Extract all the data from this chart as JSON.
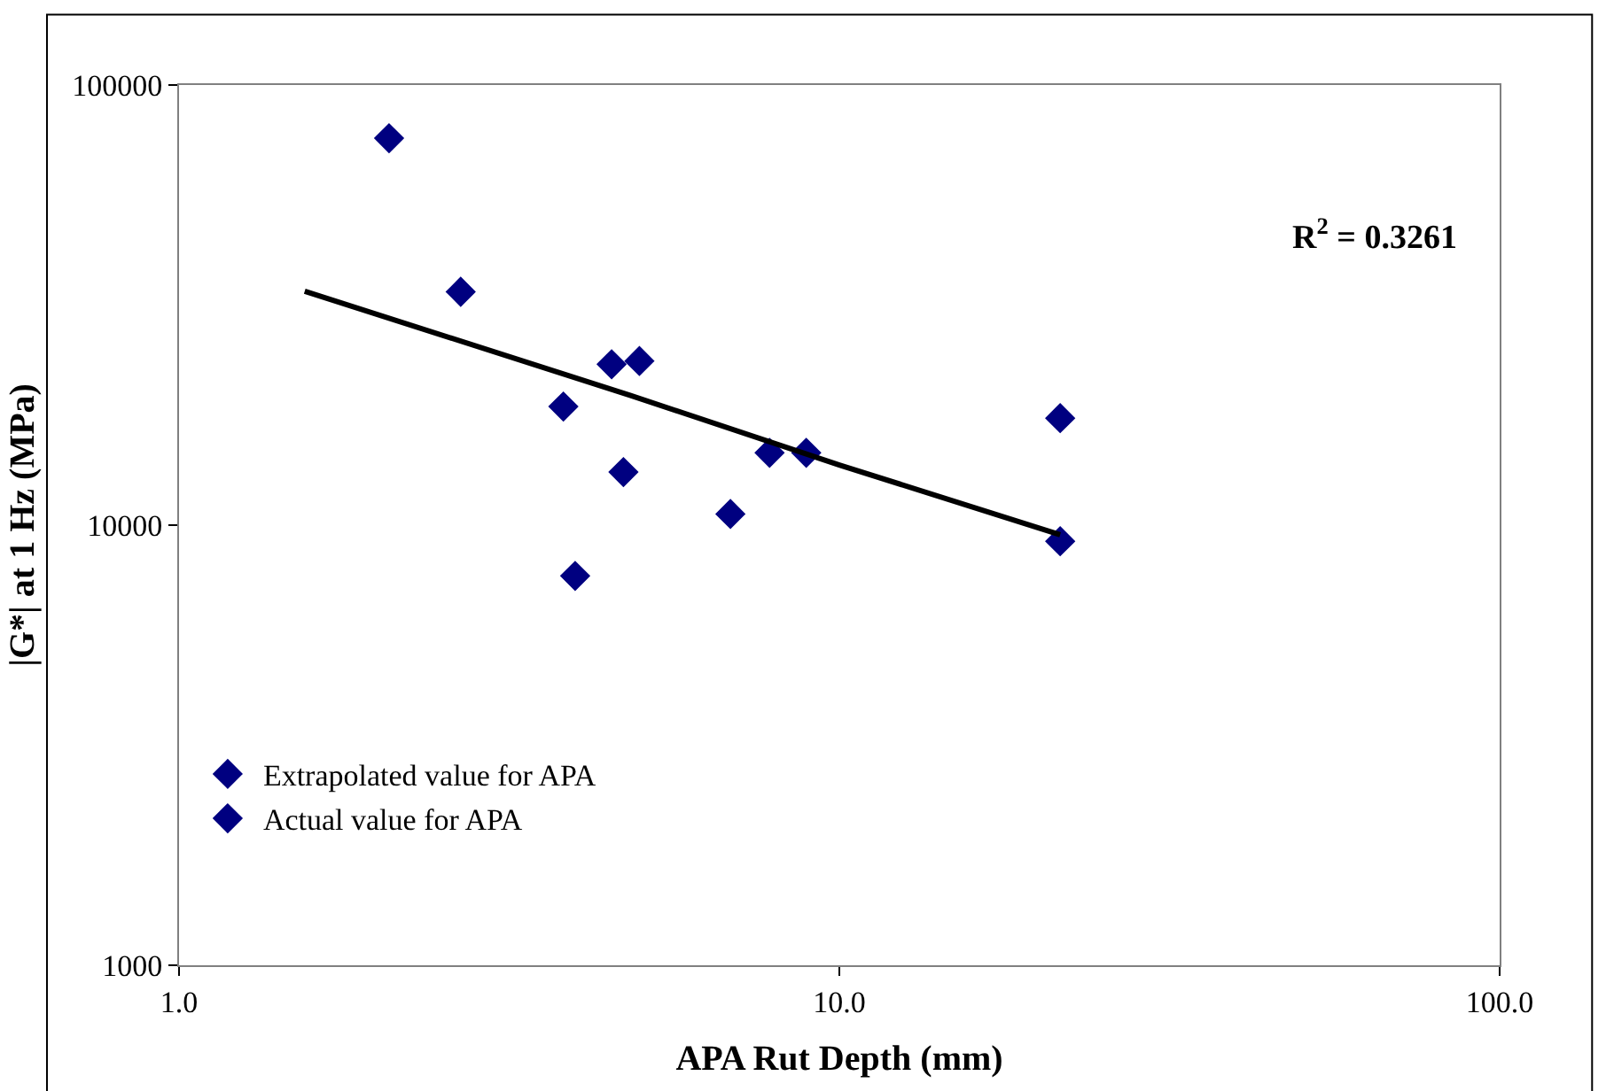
{
  "chart_data": {
    "type": "scatter",
    "xlabel": "APA Rut Depth (mm)",
    "ylabel": "|G*| at 1 Hz (MPa)",
    "log": "xy",
    "legend": "bottom left",
    "marker": "diamond",
    "xlim": [
      1,
      100
    ],
    "xticks": [
      {
        "value": 1,
        "label": "1.0"
      },
      {
        "value": 10,
        "label": "10.0"
      },
      {
        "value": 100,
        "label": "100.0"
      }
    ],
    "ylim": [
      1000,
      100000
    ],
    "yticks": [
      1000,
      10000,
      100000
    ],
    "annotations": [
      "R$^{2}$ = 0.3261"
    ],
    "series": [
      {
        "name": "Extrapolated value for APA",
        "color": "#000080",
        "x": [
          21.6,
          21.6
        ],
        "values": [
          17500,
          9190
        ]
      },
      {
        "name": "Actual value for APA",
        "color": "#000080",
        "x": [
          2.08,
          2.67,
          3.82,
          3.98,
          4.52,
          4.71,
          4.98,
          6.84,
          7.84,
          8.91
        ],
        "values": [
          75700,
          33900,
          18600,
          7670,
          23200,
          13200,
          23600,
          10600,
          14600,
          14600
        ]
      },
      {
        "type": "line",
        "color": "#000000",
        "marker": "none",
        "x": [
          1.55,
          4.83,
          10,
          21.6
        ],
        "values": [
          34000,
          19700,
          13700,
          9510
        ]
      }
    ]
  }
}
